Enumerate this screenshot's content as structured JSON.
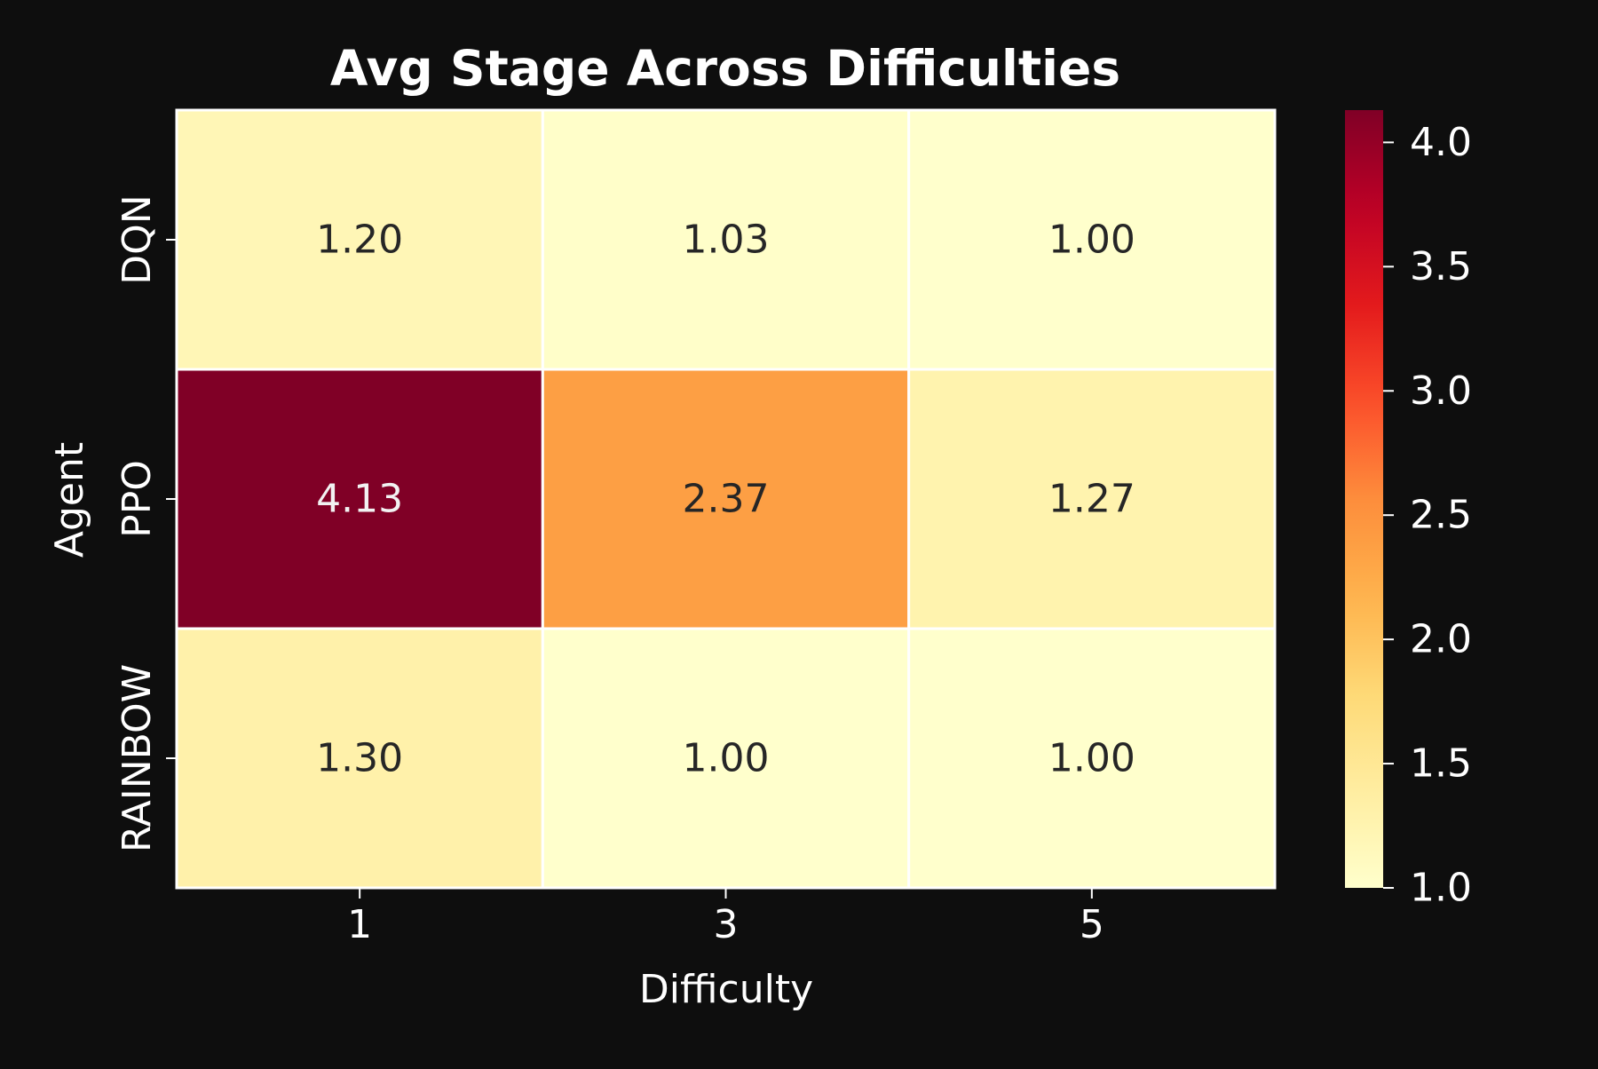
{
  "chart_data": {
    "type": "heatmap",
    "title": "Avg Stage Across Difficulties",
    "xlabel": "Difficulty",
    "ylabel": "Agent",
    "x_categories": [
      "1",
      "3",
      "5"
    ],
    "y_categories": [
      "DQN",
      "PPO",
      "RAINBOW"
    ],
    "values": [
      [
        1.2,
        1.03,
        1.0
      ],
      [
        4.13,
        2.37,
        1.27
      ],
      [
        1.3,
        1.0,
        1.0
      ]
    ],
    "value_labels": [
      [
        "1.20",
        "1.03",
        "1.00"
      ],
      [
        "4.13",
        "2.37",
        "1.27"
      ],
      [
        "1.30",
        "1.00",
        "1.00"
      ]
    ],
    "colormap": "YlOrRd",
    "color_range": [
      1.0,
      4.13
    ],
    "colorbar_ticks": [
      "1.0",
      "1.5",
      "2.0",
      "2.5",
      "3.0",
      "3.5",
      "4.0"
    ],
    "colorbar_tick_values": [
      1.0,
      1.5,
      2.0,
      2.5,
      3.0,
      3.5,
      4.0
    ],
    "colors": {
      "background": "#0e0e0e",
      "text": "#ffffff",
      "cell_border": "#ffffff",
      "annotation_dark": "#262626",
      "annotation_light": "#f2f2f2"
    }
  }
}
